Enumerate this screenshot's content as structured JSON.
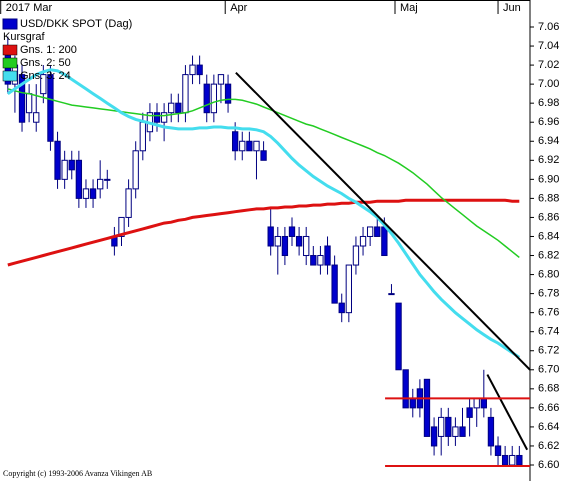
{
  "chart_data": {
    "type": "candlestick",
    "name": "USD/DKK SPOT (Dag)",
    "legend_title": "Kursgraf",
    "copyright": "Copyright (c) 1993-2006 Avanza Vikingen AB",
    "up_color": "#ffffff",
    "down_color": "#0000cc",
    "edge_color": "#000080",
    "open": [
      7.03,
      7.0,
      7.01,
      6.97,
      6.96,
      6.99,
      7.01,
      6.94,
      6.9,
      6.92,
      6.92,
      6.88,
      6.89,
      6.89,
      6.9,
      6.84,
      6.84,
      6.86,
      6.89,
      6.93,
      6.95,
      6.97,
      6.96,
      6.97,
      6.98,
      6.97,
      7.01,
      7.02,
      7.0,
      6.97,
      7.0,
      7.0,
      6.95,
      6.93,
      6.94,
      6.93,
      6.93,
      6.85,
      6.83,
      6.84,
      6.85,
      6.84,
      6.82,
      6.82,
      6.81,
      6.83,
      6.81,
      6.77,
      6.76,
      6.81,
      6.83,
      6.84,
      6.85,
      6.85,
      6.78,
      6.77,
      6.7,
      6.67,
      6.68,
      6.69,
      6.64,
      6.63,
      6.65,
      6.63,
      6.64,
      6.66,
      6.66,
      6.67,
      6.65,
      6.62,
      6.61,
      6.6,
      6.61
    ],
    "high": [
      7.05,
      7.03,
      7.02,
      7.0,
      7.0,
      7.02,
      7.02,
      6.95,
      6.93,
      6.93,
      6.93,
      6.9,
      6.9,
      6.92,
      6.91,
      6.85,
      6.86,
      6.9,
      6.94,
      6.97,
      6.98,
      6.98,
      6.98,
      6.99,
      6.99,
      7.02,
      7.03,
      7.03,
      7.01,
      7.01,
      7.01,
      7.01,
      6.96,
      6.95,
      6.95,
      6.94,
      6.94,
      6.87,
      6.85,
      6.85,
      6.86,
      6.85,
      6.85,
      6.83,
      6.83,
      6.84,
      6.82,
      6.78,
      6.81,
      6.84,
      6.85,
      6.85,
      6.86,
      6.86,
      6.79,
      6.77,
      6.7,
      6.68,
      6.69,
      6.69,
      6.65,
      6.66,
      6.66,
      6.65,
      6.66,
      6.67,
      6.67,
      6.7,
      6.66,
      6.63,
      6.62,
      6.62,
      6.62
    ],
    "low": [
      6.99,
      6.97,
      6.95,
      6.96,
      6.95,
      6.98,
      6.93,
      6.89,
      6.89,
      6.9,
      6.87,
      6.87,
      6.87,
      6.88,
      6.89,
      6.82,
      6.83,
      6.85,
      6.88,
      6.92,
      6.94,
      6.95,
      6.94,
      6.96,
      6.96,
      6.96,
      7.0,
      7.0,
      6.96,
      6.96,
      6.98,
      6.97,
      6.92,
      6.92,
      6.93,
      6.9,
      6.92,
      6.82,
      6.8,
      6.81,
      6.83,
      6.82,
      6.81,
      6.81,
      6.8,
      6.8,
      6.77,
      6.75,
      6.75,
      6.8,
      6.82,
      6.83,
      6.84,
      6.82,
      6.78,
      6.7,
      6.66,
      6.65,
      6.65,
      6.63,
      6.61,
      6.61,
      6.62,
      6.62,
      6.63,
      6.63,
      6.64,
      6.65,
      6.61,
      6.6,
      6.6,
      6.6,
      6.6
    ],
    "close": [
      7.0,
      7.02,
      6.96,
      6.99,
      6.97,
      7.01,
      6.94,
      6.9,
      6.92,
      6.91,
      6.88,
      6.89,
      6.88,
      6.9,
      6.9,
      6.83,
      6.86,
      6.89,
      6.93,
      6.96,
      6.97,
      6.96,
      6.97,
      6.98,
      6.97,
      7.01,
      7.02,
      7.01,
      6.97,
      7.0,
      7.01,
      6.98,
      6.93,
      6.94,
      6.93,
      6.94,
      6.92,
      6.83,
      6.84,
      6.82,
      6.84,
      6.83,
      6.84,
      6.81,
      6.82,
      6.81,
      6.77,
      6.76,
      6.81,
      6.83,
      6.84,
      6.85,
      6.84,
      6.82,
      6.78,
      6.7,
      6.66,
      6.66,
      6.66,
      6.63,
      6.62,
      6.65,
      6.63,
      6.64,
      6.63,
      6.65,
      6.67,
      6.66,
      6.62,
      6.61,
      6.6,
      6.61,
      6.6
    ],
    "series": [
      {
        "name": "Gns. 1: 200",
        "color": "#dd1111",
        "values": [
          6.81,
          6.812,
          6.814,
          6.816,
          6.818,
          6.82,
          6.822,
          6.824,
          6.826,
          6.828,
          6.83,
          6.832,
          6.834,
          6.836,
          6.838,
          6.84,
          6.842,
          6.844,
          6.846,
          6.848,
          6.85,
          6.852,
          6.854,
          6.855,
          6.857,
          6.858,
          6.86,
          6.861,
          6.862,
          6.863,
          6.864,
          6.865,
          6.866,
          6.867,
          6.868,
          6.869,
          6.869,
          6.87,
          6.87,
          6.871,
          6.871,
          6.872,
          6.872,
          6.873,
          6.873,
          6.874,
          6.874,
          6.875,
          6.875,
          6.876,
          6.876,
          6.876,
          6.877,
          6.877,
          6.877,
          6.877,
          6.878,
          6.878,
          6.878,
          6.878,
          6.878,
          6.878,
          6.878,
          6.878,
          6.878,
          6.878,
          6.878,
          6.878,
          6.878,
          6.878,
          6.878,
          6.877,
          6.877
        ]
      },
      {
        "name": "Gns. 2: 50",
        "color": "#22cc22",
        "values": [
          6.995,
          6.993,
          6.991,
          6.99,
          6.988,
          6.986,
          6.984,
          6.982,
          6.98,
          6.978,
          6.977,
          6.976,
          6.975,
          6.974,
          6.973,
          6.972,
          6.971,
          6.97,
          6.969,
          6.968,
          6.967,
          6.967,
          6.967,
          6.968,
          6.969,
          6.97,
          6.972,
          6.975,
          6.978,
          6.981,
          6.983,
          6.984,
          6.984,
          6.983,
          6.981,
          6.979,
          6.976,
          6.973,
          6.97,
          6.967,
          6.964,
          6.961,
          6.958,
          6.956,
          6.953,
          6.95,
          6.947,
          6.944,
          6.941,
          6.938,
          6.935,
          6.932,
          6.928,
          6.925,
          6.921,
          6.917,
          6.912,
          6.907,
          6.901,
          6.895,
          6.888,
          6.881,
          6.875,
          6.869,
          6.863,
          6.857,
          6.851,
          6.846,
          6.841,
          6.836,
          6.83,
          6.824,
          6.818
        ]
      },
      {
        "name": "Gns. 3: 24",
        "color": "#44ddee",
        "values": [
          6.99,
          6.995,
          7.0,
          7.005,
          7.01,
          7.013,
          7.015,
          7.014,
          7.01,
          7.005,
          7.0,
          6.995,
          6.99,
          6.985,
          6.98,
          6.975,
          6.97,
          6.966,
          6.963,
          6.961,
          6.959,
          6.957,
          6.955,
          6.954,
          6.953,
          6.953,
          6.953,
          6.954,
          6.954,
          6.955,
          6.955,
          6.954,
          6.954,
          6.953,
          6.953,
          6.952,
          6.95,
          6.945,
          6.938,
          6.93,
          6.922,
          6.915,
          6.909,
          6.903,
          6.898,
          6.893,
          6.889,
          6.885,
          6.88,
          6.876,
          6.871,
          6.866,
          6.86,
          6.852,
          6.843,
          6.833,
          6.822,
          6.811,
          6.8,
          6.791,
          6.782,
          6.774,
          6.767,
          6.76,
          6.754,
          6.748,
          6.742,
          6.737,
          6.732,
          6.728,
          6.723,
          6.718,
          6.713
        ]
      }
    ],
    "trendlines": [
      {
        "color": "#000000",
        "x": [
          32.1,
          73.5
        ],
        "y": [
          7.012,
          6.7
        ]
      },
      {
        "color": "#000000",
        "x": [
          67.5,
          73.1
        ],
        "y": [
          6.695,
          6.616
        ]
      },
      {
        "color": "#dd1111",
        "x": [
          53.1,
          73.5
        ],
        "y": [
          6.67,
          6.67
        ]
      },
      {
        "color": "#dd1111",
        "x": [
          53.1,
          73.5
        ],
        "y": [
          6.599,
          6.599
        ]
      }
    ],
    "xlim": [
      -1.1,
      73.5
    ],
    "xticks": [
      {
        "value": -1,
        "label": "2017 Mar"
      },
      {
        "value": 30.6,
        "label": "Apr"
      },
      {
        "value": 54.5,
        "label": "Maj"
      },
      {
        "value": 69,
        "label": "Jun"
      }
    ],
    "ylim": [
      6.6,
      7.06
    ],
    "yticks": [
      7.06,
      7.04,
      7.02,
      {
        "value": 7.0,
        "label": "7.00"
      },
      6.98,
      6.96,
      6.94,
      6.92,
      {
        "value": 6.9,
        "label": "6.90"
      },
      6.88,
      6.86,
      6.84,
      6.82,
      {
        "value": 6.8,
        "label": "6.80"
      },
      6.78,
      6.76,
      6.74,
      6.72,
      {
        "value": 6.7,
        "label": "6.70"
      },
      6.68,
      6.66,
      6.64,
      6.62,
      {
        "value": 6.6,
        "label": "6.60"
      }
    ]
  }
}
